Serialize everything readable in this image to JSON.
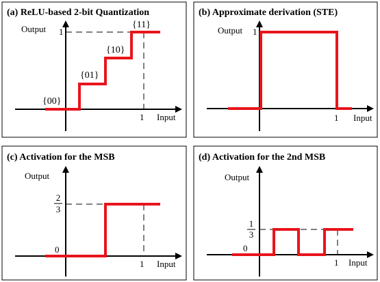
{
  "panels": [
    {
      "title": "(a) ReLU-based 2-bit Quantization",
      "y_axis_label": "Output",
      "x_axis_label": "Input",
      "x_tick": "1",
      "y_tick": "1",
      "codes": [
        "{00}",
        "{01}",
        "{10}",
        "{11}"
      ]
    },
    {
      "title": "(b) Approximate derivation (STE)",
      "y_axis_label": "Output",
      "x_axis_label": "Input",
      "x_tick": "1",
      "y_tick": "1"
    },
    {
      "title": "(c) Activation for the MSB",
      "y_axis_label": "Output",
      "x_axis_label": "Input",
      "x_tick": "1",
      "y_tick_zero": "0",
      "y_tick_num": "2",
      "y_tick_den": "3"
    },
    {
      "title": "(d) Activation for the 2nd MSB",
      "y_axis_label": "Output",
      "x_axis_label": "Input",
      "x_tick": "1",
      "y_tick_zero": "0",
      "y_tick_num": "1",
      "y_tick_den": "3"
    }
  ],
  "colors": {
    "curve": "#e8141b",
    "axis": "#000000"
  }
}
